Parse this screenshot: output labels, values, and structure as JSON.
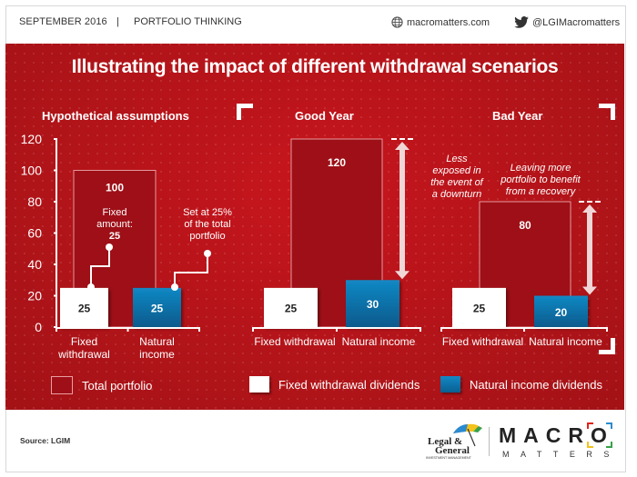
{
  "header": {
    "date": "SEPTEMBER  2016",
    "separator": "|",
    "section": "PORTFOLIO THINKING",
    "website": "macromatters.com",
    "twitter": "@LGIMacromatters",
    "website_icon": "globe-icon",
    "twitter_icon": "twitter-bird-icon"
  },
  "colors": {
    "background_red": "#b8141b",
    "total_portfolio": "#9e0f17",
    "fixed_withdrawal": "#ffffff",
    "natural_income": "#0b6fa6"
  },
  "chart_data": {
    "type": "bar",
    "title": "Illustrating the impact of different withdrawal scenarios",
    "ylim": [
      0,
      120
    ],
    "yticks": [
      0,
      20,
      40,
      60,
      80,
      100,
      120
    ],
    "legend": [
      "Total portfolio",
      "Fixed withdrawal dividends",
      "Natural income dividends"
    ],
    "legend_placement": "bottom",
    "panels": [
      {
        "title": "Hypothetical assumptions",
        "total_portfolio": 100,
        "categories": [
          "Fixed withdrawal",
          "Natural income"
        ],
        "category_lines": [
          [
            "Fixed",
            "withdrawal"
          ],
          [
            "Natural",
            "income"
          ]
        ],
        "series": [
          {
            "name": "Fixed withdrawal dividends",
            "values": [
              25,
              null
            ]
          },
          {
            "name": "Natural income dividends",
            "values": [
              null,
              25
            ]
          }
        ],
        "annotations": [
          {
            "lines": [
              "Fixed",
              "amount:",
              "25"
            ],
            "target": "Fixed withdrawal"
          },
          {
            "lines": [
              "Set at 25%",
              "of the total",
              "portfolio"
            ],
            "target": "Natural income"
          }
        ]
      },
      {
        "title": "Good Year",
        "total_portfolio": 120,
        "categories": [
          "Fixed withdrawal",
          "Natural income"
        ],
        "series": [
          {
            "name": "Fixed withdrawal dividends",
            "values": [
              25,
              null
            ]
          },
          {
            "name": "Natural income dividends",
            "values": [
              null,
              30
            ]
          }
        ],
        "annotation": [
          "Less",
          "exposed in",
          "the event of",
          "a downturn"
        ]
      },
      {
        "title": "Bad Year",
        "total_portfolio": 80,
        "categories": [
          "Fixed withdrawal",
          "Natural income"
        ],
        "series": [
          {
            "name": "Fixed withdrawal dividends",
            "values": [
              25,
              null
            ]
          },
          {
            "name": "Natural income dividends",
            "values": [
              null,
              20
            ]
          }
        ],
        "annotation": [
          "Leaving more",
          "portfolio to benefit",
          "from a recovery"
        ]
      }
    ]
  },
  "footer": {
    "source": "Source: LGIM",
    "lg_logo_lines": [
      "Legal &",
      "General",
      "INVESTMENT MANAGEMENT"
    ],
    "mm_title": "MACRO",
    "mm_subtitle": "MATTERS"
  }
}
